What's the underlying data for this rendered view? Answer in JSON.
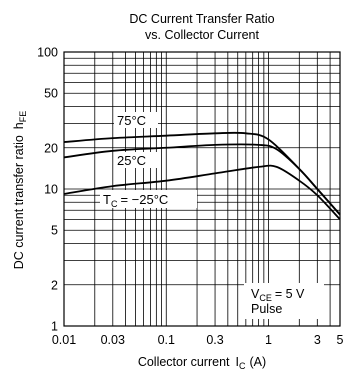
{
  "chart_data": {
    "type": "line",
    "title_line1": "DC Current Transfer Ratio",
    "title_line2": "vs. Collector Current",
    "xlabel": "Collector current",
    "xlabel_symbol": "I",
    "xlabel_sub": "C",
    "xlabel_unit": "(A)",
    "ylabel": "DC current transfer ratio",
    "ylabel_symbol": "h",
    "ylabel_sub": "FE",
    "x_scale": "log",
    "y_scale": "log",
    "xlim": [
      0.01,
      5
    ],
    "ylim": [
      1,
      100
    ],
    "grid": true,
    "x_ticks": [
      {
        "value": 0.01,
        "label": "0.01"
      },
      {
        "value": 0.03,
        "label": "0.03"
      },
      {
        "value": 0.1,
        "label": "0.1"
      },
      {
        "value": 0.3,
        "label": "0.3"
      },
      {
        "value": 1,
        "label": "1"
      },
      {
        "value": 3,
        "label": "3"
      },
      {
        "value": 5,
        "label": "5"
      }
    ],
    "y_ticks": [
      {
        "value": 1,
        "label": "1"
      },
      {
        "value": 2,
        "label": "2"
      },
      {
        "value": 5,
        "label": "5"
      },
      {
        "value": 10,
        "label": "10"
      },
      {
        "value": 20,
        "label": "20"
      },
      {
        "value": 50,
        "label": "50"
      },
      {
        "value": 100,
        "label": "100"
      }
    ],
    "series": [
      {
        "name": "75°C",
        "x": [
          0.01,
          0.03,
          0.1,
          0.3,
          0.6,
          1.0,
          2.0,
          3.0,
          5.0
        ],
        "y": [
          22,
          23.5,
          24.5,
          25.5,
          25.5,
          23,
          14,
          10,
          6.5
        ]
      },
      {
        "name": "25°C",
        "x": [
          0.01,
          0.03,
          0.1,
          0.3,
          0.8,
          1.2,
          2.0,
          3.0,
          5.0
        ],
        "y": [
          17,
          19,
          20,
          21,
          21,
          19.5,
          14,
          10,
          6.5
        ]
      },
      {
        "name": "T_C = −25°C",
        "x": [
          0.01,
          0.03,
          0.1,
          0.3,
          0.8,
          1.2,
          2.0,
          3.0,
          5.0
        ],
        "y": [
          9.2,
          10.5,
          11.5,
          13,
          14.5,
          14.5,
          11.5,
          9,
          6
        ]
      }
    ],
    "annotations": {
      "condition_vce_symbol": "V",
      "condition_vce_sub": "CE",
      "condition_vce_value": "= 5 V",
      "condition_pulse": "Pulse",
      "label_75": "75°C",
      "label_25": "25°C",
      "label_tc_symbol": "T",
      "label_tc_sub": "C",
      "label_tc_value": "= −25°C"
    }
  }
}
